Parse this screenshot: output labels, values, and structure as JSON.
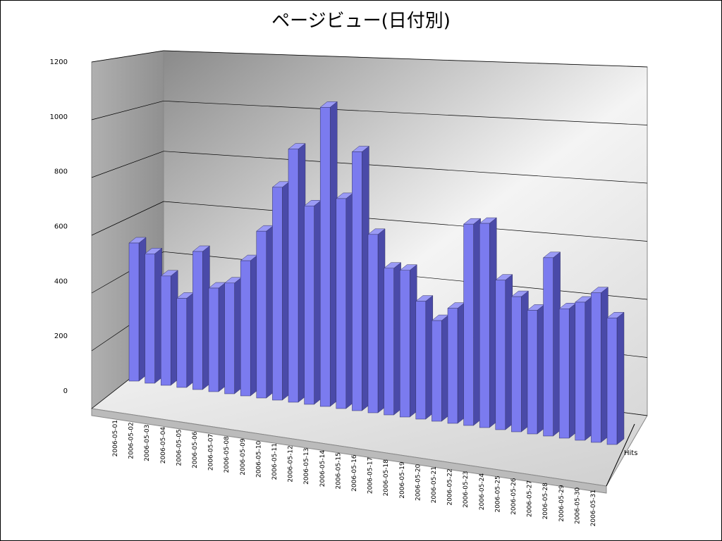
{
  "chart_data": {
    "type": "bar3d",
    "title": "ページビュー(日付別)",
    "categories": [
      "2006-05-01",
      "2006-05-02",
      "2006-05-03",
      "2006-05-04",
      "2006-05-05",
      "2006-05-06",
      "2006-05-07",
      "2006-05-08",
      "2006-05-09",
      "2006-05-10",
      "2006-05-11",
      "2006-05-12",
      "2006-05-13",
      "2006-05-14",
      "2006-05-15",
      "2006-05-16",
      "2006-05-17",
      "2006-05-18",
      "2006-05-19",
      "2006-05-20",
      "2006-05-21",
      "2006-05-22",
      "2006-05-23",
      "2006-05-24",
      "2006-05-25",
      "2006-05-26",
      "2006-05-27",
      "2006-05-28",
      "2006-05-29",
      "2006-05-30",
      "2006-05-31"
    ],
    "series": [
      {
        "name": "Hits",
        "color": "#7b7bef",
        "values": [
          480,
          450,
          380,
          310,
          480,
          360,
          385,
          470,
          580,
          740,
          880,
          690,
          1040,
          730,
          900,
          620,
          510,
          510,
          410,
          350,
          400,
          700,
          710,
          520,
          470,
          430,
          620,
          450,
          480,
          520,
          440
        ]
      }
    ],
    "ylim": [
      0,
      1200
    ],
    "yticks": [
      0,
      200,
      400,
      600,
      800,
      1000,
      1200
    ],
    "grid": true
  }
}
